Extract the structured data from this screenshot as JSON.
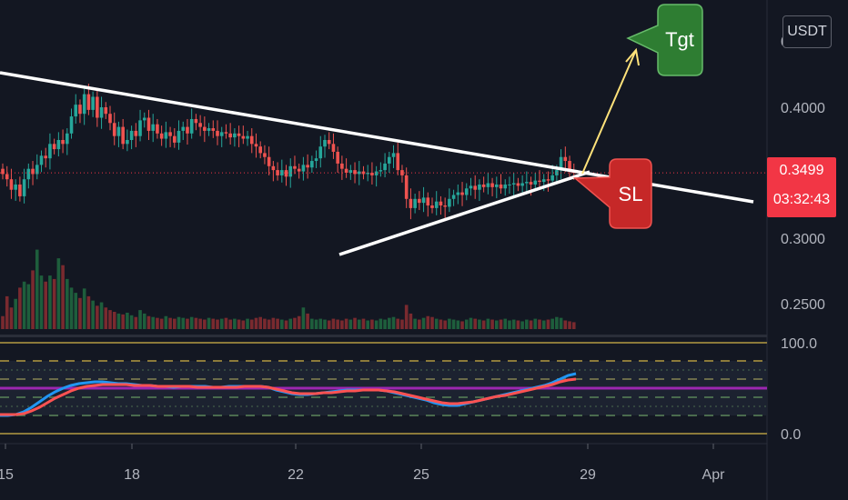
{
  "currency_button": "USDT",
  "last_price": "0.3499",
  "countdown": "03:32:43",
  "colors": {
    "bull": "#26a69a",
    "bear": "#ef5350",
    "background": "#131722",
    "oscillator_fast": "#2196f3",
    "oscillator_slow": "#ff5252",
    "oscillator_mid": "#9c27b0"
  },
  "annotations": {
    "target_label": "Tgt",
    "stoploss_label": "SL"
  },
  "chart_data": [
    {
      "type": "candlestick",
      "title": "",
      "y_ticks": [
        "0.4000",
        "0.3500",
        "0.3000",
        "0.2500"
      ],
      "x_ticks": [
        "15",
        "18",
        "22",
        "25",
        "29",
        "Apr"
      ],
      "partial_top_tick": "0",
      "ylim": [
        0.232,
        0.448
      ],
      "last_price": 0.3499,
      "closes": [
        0.349,
        0.345,
        0.337,
        0.341,
        0.332,
        0.345,
        0.353,
        0.349,
        0.356,
        0.363,
        0.361,
        0.372,
        0.368,
        0.375,
        0.372,
        0.38,
        0.393,
        0.402,
        0.395,
        0.41,
        0.398,
        0.408,
        0.392,
        0.4,
        0.395,
        0.388,
        0.378,
        0.385,
        0.372,
        0.375,
        0.382,
        0.378,
        0.39,
        0.392,
        0.382,
        0.387,
        0.38,
        0.376,
        0.381,
        0.378,
        0.373,
        0.382,
        0.385,
        0.38,
        0.391,
        0.388,
        0.385,
        0.382,
        0.384,
        0.382,
        0.378,
        0.381,
        0.38,
        0.377,
        0.38,
        0.378,
        0.376,
        0.378,
        0.372,
        0.37,
        0.365,
        0.362,
        0.355,
        0.352,
        0.348,
        0.352,
        0.347,
        0.355,
        0.353,
        0.351,
        0.356,
        0.354,
        0.359,
        0.361,
        0.37,
        0.375,
        0.372,
        0.366,
        0.357,
        0.353,
        0.35,
        0.352,
        0.349,
        0.351,
        0.349,
        0.35,
        0.348,
        0.351,
        0.352,
        0.357,
        0.362,
        0.365,
        0.352,
        0.348,
        0.33,
        0.323,
        0.33,
        0.327,
        0.331,
        0.325,
        0.323,
        0.328,
        0.325,
        0.324,
        0.33,
        0.333,
        0.335,
        0.333,
        0.338,
        0.34,
        0.337,
        0.341,
        0.339,
        0.342,
        0.339,
        0.341,
        0.338,
        0.341,
        0.341,
        0.342,
        0.34,
        0.342,
        0.343,
        0.341,
        0.344,
        0.343,
        0.345,
        0.344,
        0.348,
        0.352,
        0.362,
        0.359,
        0.351,
        0.35
      ],
      "volumes": [
        0.15,
        0.38,
        0.25,
        0.35,
        0.48,
        0.55,
        0.52,
        0.68,
        0.92,
        0.62,
        0.55,
        0.62,
        0.58,
        0.82,
        0.74,
        0.58,
        0.48,
        0.42,
        0.36,
        0.47,
        0.38,
        0.33,
        0.27,
        0.31,
        0.25,
        0.22,
        0.2,
        0.18,
        0.17,
        0.19,
        0.16,
        0.14,
        0.22,
        0.18,
        0.15,
        0.14,
        0.13,
        0.12,
        0.15,
        0.13,
        0.12,
        0.14,
        0.13,
        0.12,
        0.14,
        0.13,
        0.12,
        0.11,
        0.13,
        0.12,
        0.11,
        0.12,
        0.13,
        0.11,
        0.12,
        0.11,
        0.1,
        0.12,
        0.11,
        0.13,
        0.14,
        0.12,
        0.11,
        0.13,
        0.12,
        0.11,
        0.1,
        0.12,
        0.13,
        0.15,
        0.25,
        0.18,
        0.12,
        0.11,
        0.12,
        0.11,
        0.1,
        0.12,
        0.11,
        0.1,
        0.12,
        0.11,
        0.13,
        0.11,
        0.12,
        0.1,
        0.11,
        0.1,
        0.12,
        0.11,
        0.13,
        0.14,
        0.12,
        0.11,
        0.28,
        0.18,
        0.12,
        0.11,
        0.13,
        0.15,
        0.14,
        0.12,
        0.11,
        0.1,
        0.12,
        0.11,
        0.1,
        0.09,
        0.11,
        0.13,
        0.12,
        0.11,
        0.1,
        0.12,
        0.11,
        0.1,
        0.11,
        0.12,
        0.1,
        0.11,
        0.1,
        0.09,
        0.11,
        0.1,
        0.12,
        0.11,
        0.1,
        0.11,
        0.12,
        0.14,
        0.13,
        0.1,
        0.09,
        0.08
      ]
    },
    {
      "type": "line",
      "y_ticks": [
        "100.0",
        "0.0"
      ],
      "ylim": [
        0,
        100
      ],
      "bands": [
        100,
        80,
        50,
        20,
        0
      ],
      "series": [
        {
          "values": [
            20,
            20,
            21,
            24,
            29,
            35,
            41,
            46,
            50,
            53,
            55,
            56,
            57,
            57,
            56,
            55,
            55,
            54,
            53,
            53,
            52,
            52,
            51,
            52,
            52,
            52,
            52,
            51,
            51,
            52,
            52,
            52,
            52,
            52,
            51,
            48,
            46,
            44,
            43,
            43,
            44,
            45,
            46,
            47,
            48,
            48,
            48,
            48,
            48,
            47,
            45,
            43,
            41,
            39,
            37,
            34,
            32,
            31,
            31,
            33,
            35,
            37,
            39,
            41,
            43,
            45,
            47,
            49,
            51,
            53,
            56,
            60,
            64,
            66
          ]
        },
        {
          "values": [
            21,
            21,
            21,
            22,
            25,
            29,
            34,
            39,
            43,
            47,
            50,
            52,
            53,
            54,
            54,
            54,
            54,
            53,
            53,
            53,
            52,
            52,
            52,
            52,
            52,
            51,
            51,
            51,
            51,
            51,
            51,
            52,
            52,
            52,
            51,
            49,
            47,
            45,
            44,
            44,
            44,
            45,
            45,
            46,
            47,
            47,
            48,
            48,
            48,
            47,
            46,
            44,
            42,
            40,
            38,
            36,
            34,
            33,
            33,
            34,
            35,
            37,
            39,
            41,
            42,
            44,
            46,
            48,
            50,
            52,
            54,
            57,
            59,
            60
          ]
        }
      ]
    }
  ]
}
